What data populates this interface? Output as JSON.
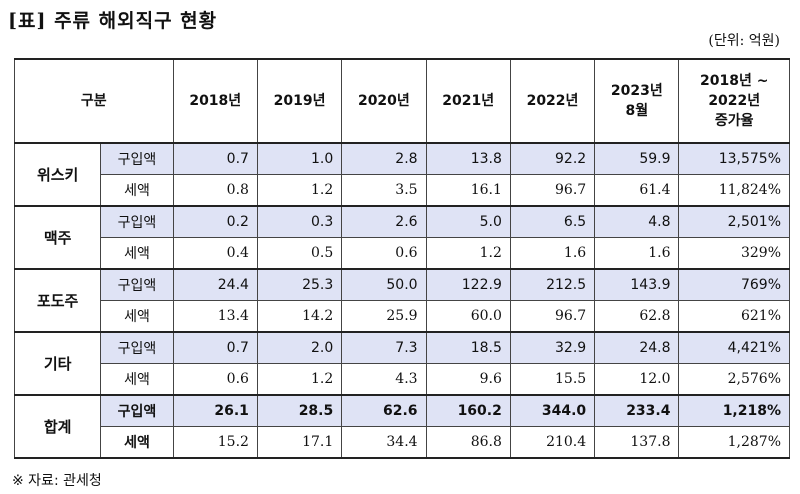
{
  "title": "[표] 주류 해외직구 현황",
  "unit": "(단위: 억원)",
  "header": {
    "category": "구분",
    "years": [
      "2018년",
      "2019년",
      "2020년",
      "2021년",
      "2022년"
    ],
    "aug2023_line1": "2023년",
    "aug2023_line2": "8월",
    "growth_line1": "2018년 ~",
    "growth_line2": "2022년",
    "growth_line3": "증가율"
  },
  "rows": [
    {
      "name": "위스키",
      "buy": {
        "label": "구입액",
        "values": [
          "0.7",
          "1.0",
          "2.8",
          "13.8",
          "92.2",
          "59.9",
          "13,575%"
        ]
      },
      "tax": {
        "label": "세액",
        "values": [
          "0.8",
          "1.2",
          "3.5",
          "16.1",
          "96.7",
          "61.4",
          "11,824%"
        ]
      }
    },
    {
      "name": "맥주",
      "buy": {
        "label": "구입액",
        "values": [
          "0.2",
          "0.3",
          "2.6",
          "5.0",
          "6.5",
          "4.8",
          "2,501%"
        ]
      },
      "tax": {
        "label": "세액",
        "values": [
          "0.4",
          "0.5",
          "0.6",
          "1.2",
          "1.6",
          "1.6",
          "329%"
        ]
      }
    },
    {
      "name": "포도주",
      "buy": {
        "label": "구입액",
        "values": [
          "24.4",
          "25.3",
          "50.0",
          "122.9",
          "212.5",
          "143.9",
          "769%"
        ]
      },
      "tax": {
        "label": "세액",
        "values": [
          "13.4",
          "14.2",
          "25.9",
          "60.0",
          "96.7",
          "62.8",
          "621%"
        ]
      }
    },
    {
      "name": "기타",
      "buy": {
        "label": "구입액",
        "values": [
          "0.7",
          "2.0",
          "7.3",
          "18.5",
          "32.9",
          "24.8",
          "4,421%"
        ]
      },
      "tax": {
        "label": "세액",
        "values": [
          "0.6",
          "1.2",
          "4.3",
          "9.6",
          "15.5",
          "12.0",
          "2,576%"
        ]
      }
    },
    {
      "name": "합계",
      "buy": {
        "label": "구입액",
        "values": [
          "26.1",
          "28.5",
          "62.6",
          "160.2",
          "344.0",
          "233.4",
          "1,218%"
        ]
      },
      "tax": {
        "label": "세액",
        "values": [
          "15.2",
          "17.1",
          "34.4",
          "86.8",
          "210.4",
          "137.8",
          "1,287%"
        ]
      }
    }
  ],
  "footnote": "※ 자료: 관세청"
}
